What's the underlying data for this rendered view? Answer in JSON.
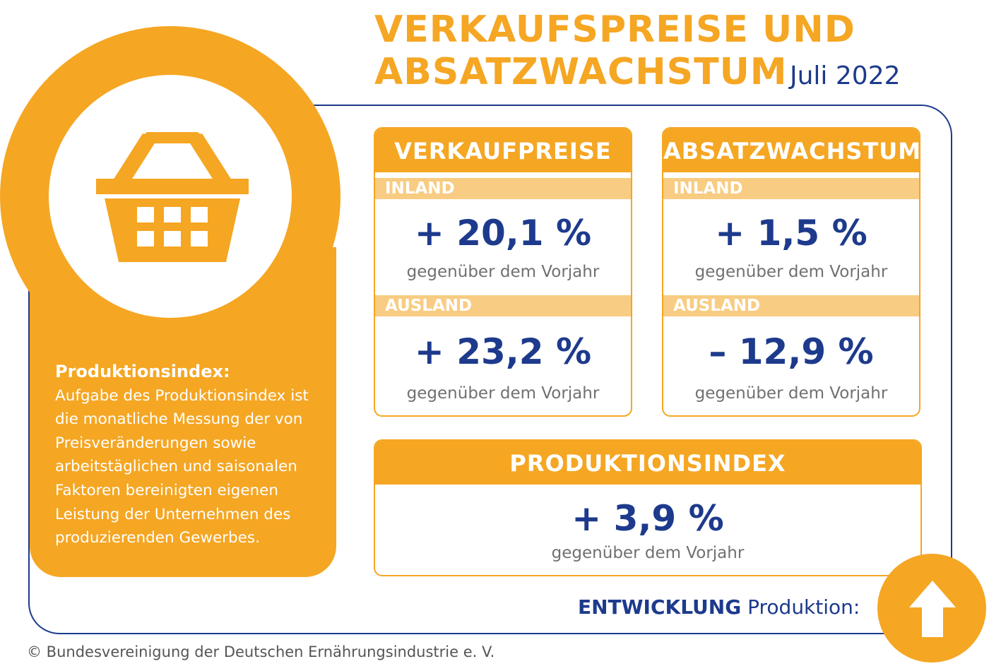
{
  "header": {
    "title_line1": "VERKAUFSPREISE UND",
    "title_line2": "ABSATZWACHSTUM",
    "date": "Juli 2022"
  },
  "sidebar": {
    "icon": "shopping-basket-icon",
    "heading": "Produktionsindex:",
    "text": "Aufgabe des Produktionsindex ist die monatliche Messung der von Preisveränderungen sowie arbeitstäglichen und saisonalen Faktoren bereinigten eigenen Leistung der Unternehmen des produzierenden Gewerbes."
  },
  "cards": {
    "verkaufpreise": {
      "title": "VERKAUFPREISE",
      "inland_label": "INLAND",
      "inland_value": "+ 20,1 %",
      "inland_sub": "gegenüber dem Vorjahr",
      "ausland_label": "AUSLAND",
      "ausland_value": "+ 23,2 %",
      "ausland_sub": "gegenüber dem Vorjahr"
    },
    "absatzwachstum": {
      "title": "ABSATZWACHSTUM",
      "inland_label": "INLAND",
      "inland_value": "+ 1,5 %",
      "inland_sub": "gegenüber dem Vorjahr",
      "ausland_label": "AUSLAND",
      "ausland_value": "– 12,9 %",
      "ausland_sub": "gegenüber dem Vorjahr"
    },
    "produktionsindex": {
      "title": "PRODUKTIONSINDEX",
      "value": "+ 3,9 %",
      "sub": "gegenüber dem Vorjahr"
    }
  },
  "footer": {
    "entwicklung_bold": "ENTWICKLUNG",
    "entwicklung_rest": " Produktion:",
    "arrow_icon": "arrow-up-icon",
    "copyright": "© Bundesvereinigung der Deutschen Ernährungsindustrie e. V."
  },
  "colors": {
    "accent": "#f5a623",
    "accent_light": "#f8cc82",
    "navy": "#1d3a8c",
    "gray_text": "#707070"
  }
}
